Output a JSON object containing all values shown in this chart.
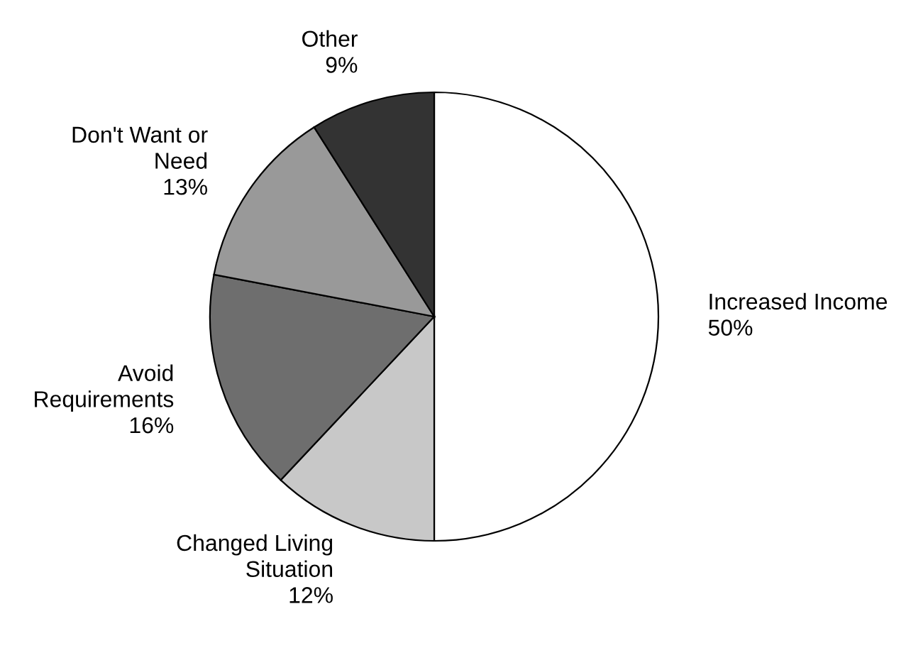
{
  "chart_data": {
    "type": "pie",
    "categories": [
      "Increased Income",
      "Changed Living\nSituation",
      "Avoid\nRequirements",
      "Don't Want or\nNeed",
      "Other"
    ],
    "values": [
      50,
      12,
      16,
      13,
      9
    ],
    "value_labels": [
      "50%",
      "12%",
      "16%",
      "13%",
      "9%"
    ],
    "colors": [
      "#ffffff",
      "#c8c8c8",
      "#6e6e6e",
      "#999999",
      "#333333"
    ]
  }
}
